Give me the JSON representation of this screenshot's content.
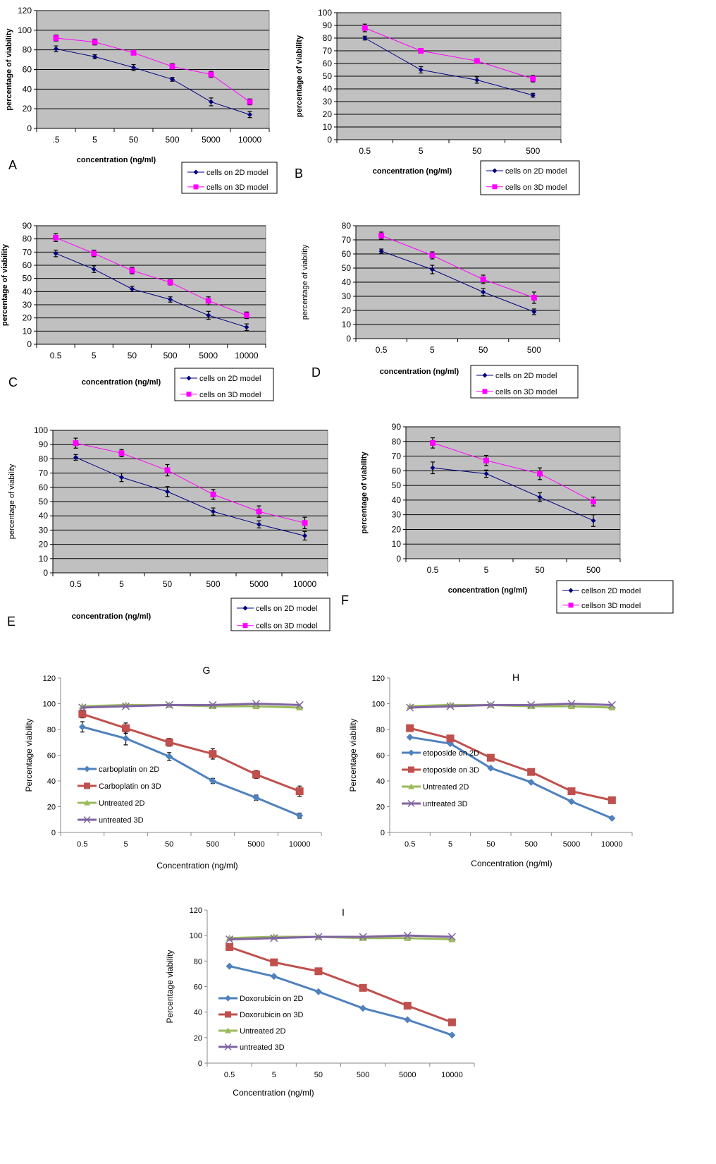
{
  "figure": {
    "panel_letters": [
      "A",
      "B",
      "C",
      "D",
      "E",
      "F",
      "G",
      "H",
      "I"
    ]
  },
  "chart_data": [
    {
      "id": "A",
      "type": "line",
      "style": "excel2003",
      "title": "",
      "letter": "A",
      "xlabel": "concentration (ng/ml)",
      "ylabel": "percentage of viability",
      "categories": [
        ".5",
        "5",
        "50",
        "500",
        "5000",
        "10000"
      ],
      "ylim": [
        0,
        120
      ],
      "ystep": 20,
      "grid": true,
      "legend": "bottom-right",
      "series": [
        {
          "name": "cells on 2D model",
          "color": "#000080",
          "marker": "diamond",
          "values": [
            81,
            73,
            62,
            50,
            27,
            14
          ],
          "errors": [
            3,
            2,
            3,
            2,
            4,
            3
          ]
        },
        {
          "name": "cells on 3D model",
          "color": "#FF00FF",
          "marker": "square",
          "values": [
            92,
            88,
            77,
            63,
            55,
            27
          ],
          "errors": [
            3,
            3,
            2,
            3,
            3,
            3
          ]
        }
      ]
    },
    {
      "id": "B",
      "type": "line",
      "style": "excel2003",
      "title": "",
      "letter": "B",
      "xlabel": "concentration (ng/ml)",
      "ylabel": "percentage of viability",
      "categories": [
        "0.5",
        "5",
        "50",
        "500"
      ],
      "ylim": [
        0,
        100
      ],
      "ystep": 10,
      "grid": true,
      "legend": "bottom-right",
      "series": [
        {
          "name": "cells on 2D model",
          "color": "#000080",
          "marker": "diamond",
          "values": [
            80,
            55,
            47,
            35
          ],
          "errors": [
            1.5,
            2.5,
            2.5,
            1.5
          ]
        },
        {
          "name": "cells on 3D model",
          "color": "#FF00FF",
          "marker": "square",
          "values": [
            88,
            70,
            62,
            48
          ],
          "errors": [
            3,
            1,
            1.5,
            2.5
          ]
        }
      ]
    },
    {
      "id": "C",
      "type": "line",
      "style": "excel2003",
      "title": "",
      "letter": "C",
      "xlabel": "concentration (ng/ml)",
      "ylabel": "percentage of viability",
      "categories": [
        "0.5",
        "5",
        "50",
        "500",
        "5000",
        "10000"
      ],
      "ylim": [
        0,
        90
      ],
      "ystep": 10,
      "grid": true,
      "legend": "bottom-right",
      "series": [
        {
          "name": "cells on 2D model",
          "color": "#000080",
          "marker": "diamond",
          "values": [
            69,
            57,
            42,
            34,
            22,
            13
          ],
          "errors": [
            2.5,
            2.5,
            2,
            2,
            3,
            2.5
          ]
        },
        {
          "name": "cells on 3D model",
          "color": "#FF00FF",
          "marker": "square",
          "values": [
            81,
            69,
            56,
            47,
            33,
            22
          ],
          "errors": [
            3,
            2.5,
            2.5,
            2,
            3,
            2.5
          ]
        }
      ]
    },
    {
      "id": "D",
      "type": "line",
      "style": "excel2003",
      "title": "",
      "letter": "D",
      "xlabel": "concentration (ng/ml)",
      "ylabel": "percentage of viability",
      "categories": [
        "0.5",
        "5",
        "50",
        "500"
      ],
      "ylim": [
        0,
        80
      ],
      "ystep": 10,
      "grid": true,
      "legend": "bottom-right",
      "series": [
        {
          "name": "cells on 2D model",
          "color": "#000080",
          "marker": "diamond",
          "values": [
            62,
            49,
            33,
            19
          ],
          "errors": [
            1.5,
            3,
            2.5,
            2
          ]
        },
        {
          "name": "cells on 3D model",
          "color": "#FF00FF",
          "marker": "square",
          "values": [
            73,
            59,
            42,
            29
          ],
          "errors": [
            2.5,
            2.5,
            3,
            4
          ]
        }
      ]
    },
    {
      "id": "E",
      "type": "line",
      "style": "excel2003",
      "title": "",
      "letter": "E",
      "xlabel": "concentration (ng/ml)",
      "ylabel": "percentage of viability",
      "categories": [
        "0.5",
        "5",
        "50",
        "500",
        "5000",
        "10000"
      ],
      "ylim": [
        0,
        100
      ],
      "ystep": 10,
      "grid": true,
      "legend": "bottom-right",
      "series": [
        {
          "name": "cells on 2D model",
          "color": "#000080",
          "marker": "diamond",
          "values": [
            81,
            67,
            57,
            43,
            34,
            26
          ],
          "errors": [
            2,
            3,
            3.5,
            2.5,
            2.5,
            3
          ]
        },
        {
          "name": "cells on 3D model",
          "color": "#FF00FF",
          "marker": "square",
          "values": [
            91,
            84,
            72,
            55,
            43,
            35
          ],
          "errors": [
            3.5,
            2.5,
            4,
            3.5,
            4,
            4
          ]
        }
      ]
    },
    {
      "id": "F",
      "type": "line",
      "style": "excel2003",
      "title": "",
      "letter": "F",
      "xlabel": "concentration  (ng/ml)",
      "ylabel": "percentage  of viability",
      "categories": [
        "0.5",
        "5",
        "50",
        "500"
      ],
      "ylim": [
        0,
        90
      ],
      "ystep": 10,
      "grid": true,
      "legend": "bottom-right",
      "series": [
        {
          "name": "cellson 2D model",
          "color": "#000080",
          "marker": "diamond",
          "values": [
            62,
            58,
            42,
            26
          ],
          "errors": [
            4,
            2.5,
            3,
            4
          ]
        },
        {
          "name": "cellson 3D model",
          "color": "#FF00FF",
          "marker": "square",
          "values": [
            79,
            67,
            58,
            39
          ],
          "errors": [
            3.5,
            3.5,
            4,
            3
          ]
        }
      ]
    },
    {
      "id": "G",
      "type": "line",
      "style": "excel2007",
      "title": "G",
      "letter": "",
      "xlabel": "Concentration (ng/ml)",
      "ylabel": "Percentage viability",
      "categories": [
        "0.5",
        "5",
        "50",
        "500",
        "5000",
        "10000"
      ],
      "ylim": [
        0,
        120
      ],
      "ystep": 20,
      "grid": false,
      "legend": "left-center",
      "series": [
        {
          "name": "carboplatin on 2D",
          "color": "#4F81BD",
          "marker": "diamond",
          "values": [
            82,
            73,
            59,
            40,
            27,
            13
          ],
          "errors": [
            4,
            5,
            3,
            2,
            2,
            2
          ]
        },
        {
          "name": "Carboplatin on 3D",
          "color": "#C0504D",
          "marker": "square",
          "values": [
            92,
            81,
            70,
            61,
            45,
            32
          ],
          "errors": [
            3,
            4,
            3,
            4,
            3,
            4
          ]
        },
        {
          "name": "Untreated 2D",
          "color": "#9BBB59",
          "marker": "triangle",
          "values": [
            98,
            99,
            99,
            98,
            98,
            97
          ],
          "errors": [
            0,
            0,
            0,
            0,
            0,
            0
          ]
        },
        {
          "name": "untreated 3D",
          "color": "#8064A2",
          "marker": "x",
          "values": [
            97,
            98,
            99,
            99,
            100,
            99
          ],
          "errors": [
            0,
            0,
            0,
            0,
            0,
            0
          ]
        }
      ]
    },
    {
      "id": "H",
      "type": "line",
      "style": "excel2007",
      "title": "H",
      "letter": "",
      "xlabel": "Concentration (ng/ml)",
      "ylabel": "Percentage viability",
      "categories": [
        "0.5",
        "5",
        "50",
        "500",
        "5000",
        "10000"
      ],
      "ylim": [
        0,
        120
      ],
      "ystep": 20,
      "grid": false,
      "legend": "left-center",
      "series": [
        {
          "name": "etoposide on 2D",
          "color": "#4F81BD",
          "marker": "diamond",
          "values": [
            74,
            69,
            50,
            39,
            24,
            11
          ],
          "errors": [
            0,
            0,
            0,
            0,
            0,
            0
          ]
        },
        {
          "name": "etoposide on 3D",
          "color": "#C0504D",
          "marker": "square",
          "values": [
            81,
            73,
            58,
            47,
            32,
            25
          ],
          "errors": [
            0,
            0,
            0,
            0,
            0,
            0
          ]
        },
        {
          "name": "Untreated 2D",
          "color": "#9BBB59",
          "marker": "triangle",
          "values": [
            98,
            99,
            99,
            98,
            98,
            97
          ],
          "errors": [
            0,
            0,
            0,
            0,
            0,
            0
          ]
        },
        {
          "name": "untreated 3D",
          "color": "#8064A2",
          "marker": "x",
          "values": [
            97,
            98,
            99,
            99,
            100,
            99
          ],
          "errors": [
            0,
            0,
            0,
            0,
            0,
            0
          ]
        }
      ]
    },
    {
      "id": "I",
      "type": "line",
      "style": "excel2007",
      "title": "I",
      "letter": "",
      "xlabel": "Concentration (ng/ml)",
      "ylabel": "Percentage viability",
      "categories": [
        "0.5",
        "5",
        "50",
        "500",
        "5000",
        "10000"
      ],
      "ylim": [
        0,
        120
      ],
      "ystep": 20,
      "grid": false,
      "legend": "left-center",
      "series": [
        {
          "name": "Doxorubicin on 2D",
          "color": "#4F81BD",
          "marker": "diamond",
          "values": [
            76,
            68,
            56,
            43,
            34,
            22
          ],
          "errors": [
            0,
            0,
            0,
            0,
            0,
            0
          ]
        },
        {
          "name": "Doxorubicin on 3D",
          "color": "#C0504D",
          "marker": "square",
          "values": [
            91,
            79,
            72,
            59,
            45,
            32
          ],
          "errors": [
            0,
            0,
            0,
            0,
            0,
            0
          ]
        },
        {
          "name": "Untreated 2D",
          "color": "#9BBB59",
          "marker": "triangle",
          "values": [
            98,
            99,
            99,
            98,
            98,
            97
          ],
          "errors": [
            0,
            0,
            0,
            0,
            0,
            0
          ]
        },
        {
          "name": "untreated 3D",
          "color": "#8064A2",
          "marker": "x",
          "values": [
            97,
            98,
            99,
            99,
            100,
            99
          ],
          "errors": [
            0,
            0,
            0,
            0,
            0,
            0
          ]
        }
      ]
    }
  ]
}
